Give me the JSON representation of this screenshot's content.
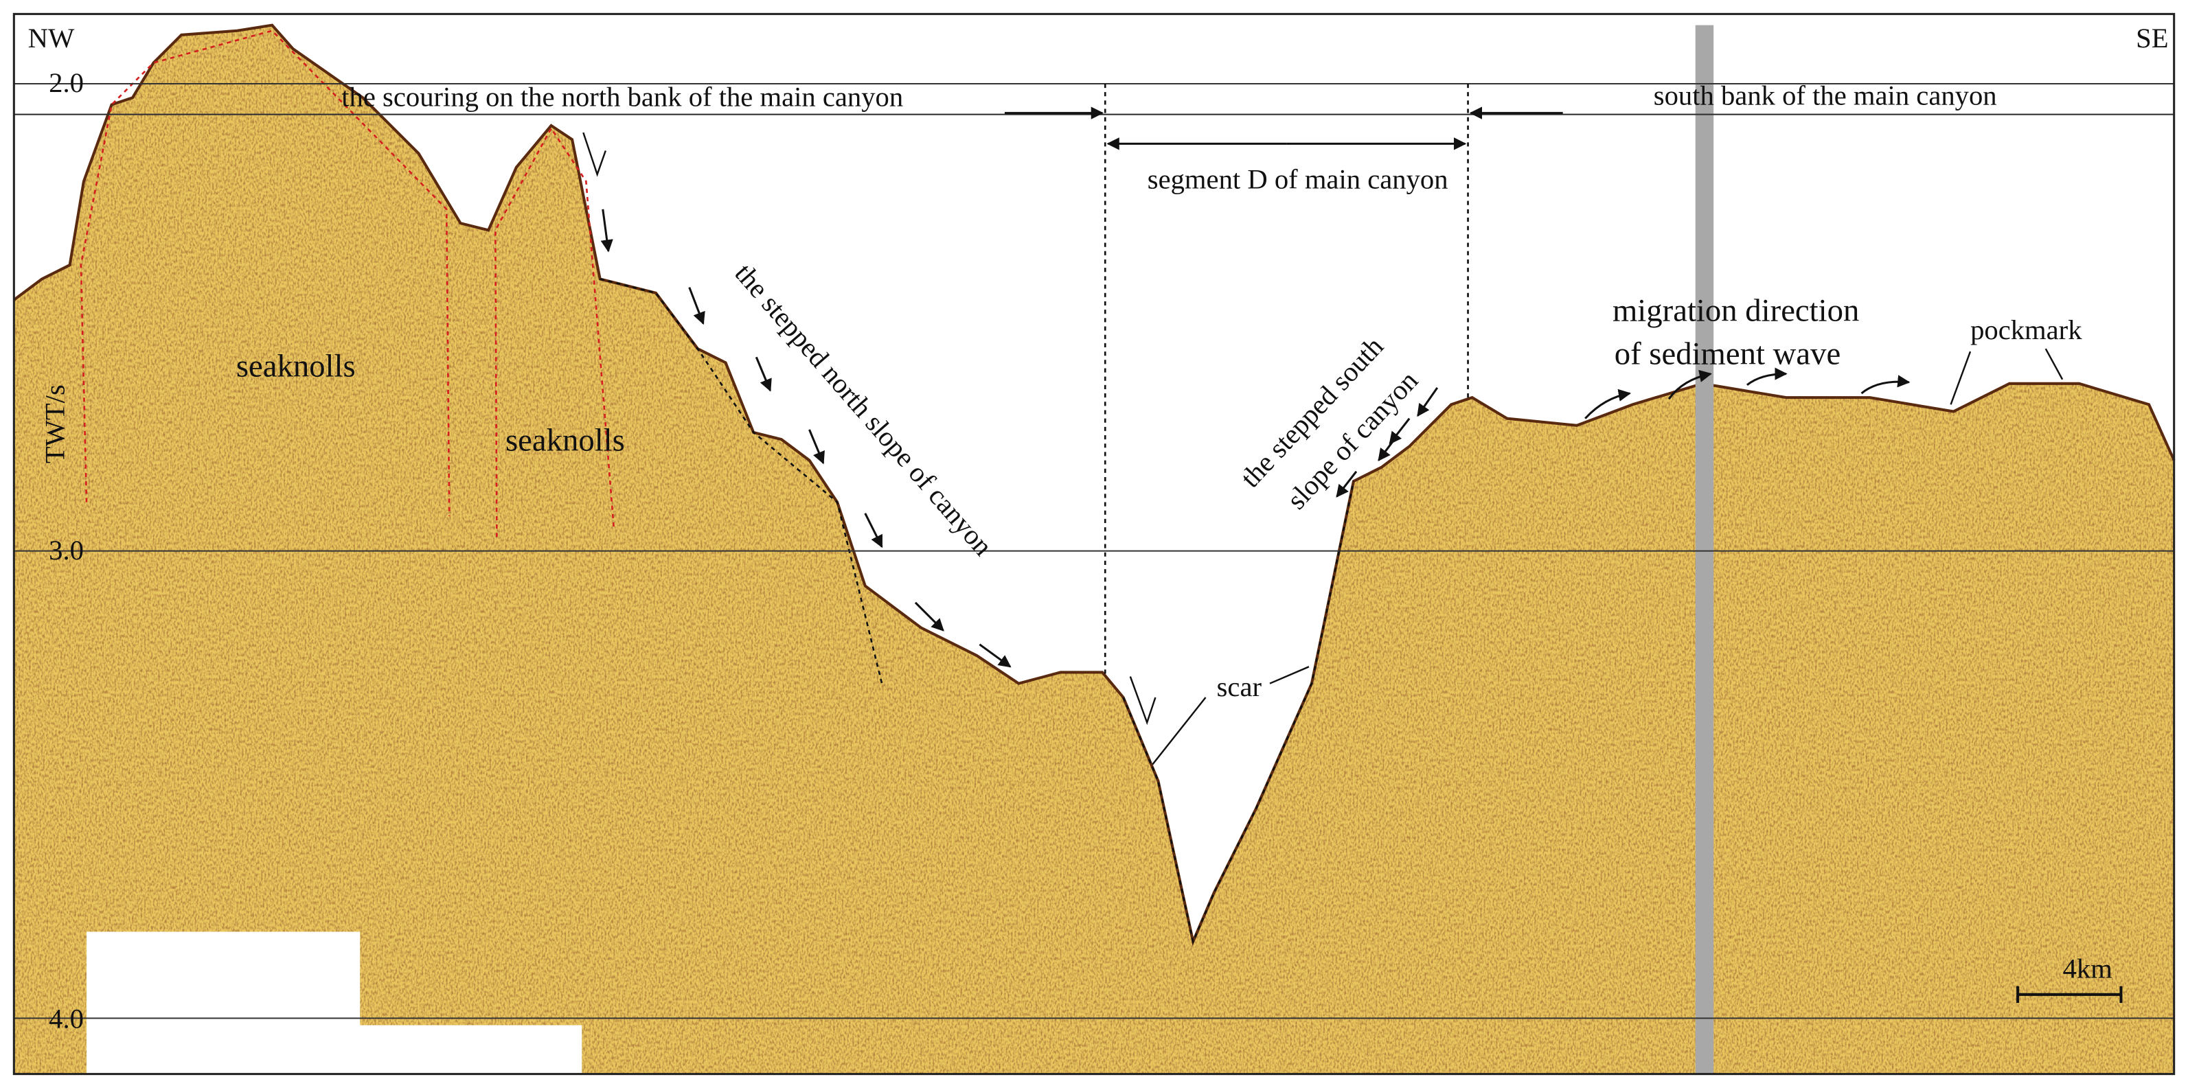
{
  "corner_labels": {
    "left": "NW",
    "right": "SE"
  },
  "y_axis": {
    "title": "TWT/s",
    "ticks": [
      "2.0",
      "3.0",
      "4.0"
    ]
  },
  "annotations": {
    "north_bank": "the scouring  on the north bank of the main canyon",
    "south_bank": "south bank of the main canyon",
    "segment": "segment D of main canyon",
    "north_slope": "the stepped  north slope of canyon",
    "south_slope": [
      "the stepped  south",
      "slope of canyon"
    ],
    "migration": [
      "migration direction",
      "of sediment wave"
    ],
    "pockmark": "pockmark",
    "scar": "scar",
    "seaknolls": [
      "seaknolls",
      "seaknolls"
    ]
  },
  "scale_bar": "4km"
}
